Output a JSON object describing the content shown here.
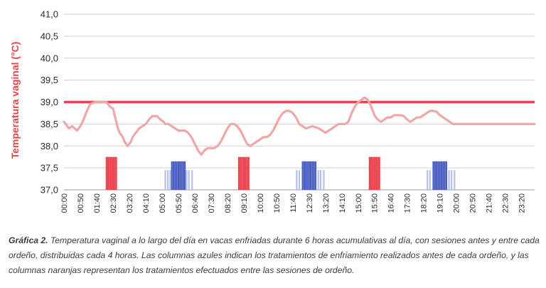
{
  "chart_data": {
    "type": "line",
    "ylabel": "Temperatura vaginal (°C)",
    "ylim": [
      37.0,
      41.0
    ],
    "yticks": [
      "37,0",
      "37,5",
      "38,0",
      "38,5",
      "39,0",
      "39,5",
      "40,0",
      "40,5",
      "41,0"
    ],
    "xticks": [
      "00:00",
      "00:50",
      "01:40",
      "02:30",
      "03:20",
      "04:10",
      "05:00",
      "05:50",
      "06:40",
      "07:30",
      "08:20",
      "09:10",
      "10:00",
      "10:50",
      "11:40",
      "12:30",
      "13:20",
      "14:10",
      "15:00",
      "15:50",
      "16:40",
      "17:30",
      "18:20",
      "19:10",
      "20:00",
      "20:50",
      "21:40",
      "22:30",
      "23:20"
    ],
    "xlim": [
      0,
      1440
    ],
    "threshold": 39.0,
    "series": [
      {
        "color": "#f0a7a9",
        "x": [
          0,
          15,
          25,
          40,
          50,
          60,
          70,
          80,
          95,
          100,
          110,
          120,
          130,
          140,
          150,
          160,
          165,
          170,
          180,
          185,
          195,
          205,
          210,
          220,
          230,
          240,
          250,
          260,
          270,
          285,
          295,
          305,
          310,
          320,
          330,
          340,
          350,
          360,
          370,
          380,
          390,
          400,
          410,
          420,
          430,
          440,
          450,
          460,
          470,
          480,
          490,
          500,
          510,
          520,
          530,
          540,
          550,
          560,
          570,
          580,
          590,
          600,
          610,
          620,
          630,
          640,
          650,
          660,
          670,
          680,
          690,
          700,
          710,
          720,
          730,
          740,
          760,
          780,
          800,
          810,
          820,
          830,
          840,
          850,
          860,
          870,
          880,
          890,
          900,
          910,
          920,
          930,
          940,
          950,
          960,
          970,
          980,
          990,
          1000,
          1010,
          1020,
          1030,
          1040,
          1050,
          1060,
          1070,
          1080,
          1090,
          1100,
          1110,
          1120,
          1130,
          1140,
          1150,
          1160,
          1170,
          1180,
          1190,
          1200,
          1210,
          1220,
          1230,
          1240,
          1250,
          1260,
          1270,
          1280,
          1290,
          1300,
          1310,
          1320,
          1330,
          1340,
          1350,
          1360,
          1370,
          1380,
          1390,
          1400,
          1410,
          1420,
          1440
        ],
        "y": [
          38.55,
          38.4,
          38.45,
          38.35,
          38.45,
          38.6,
          38.8,
          38.95,
          39.0,
          39.0,
          39.0,
          39.0,
          39.0,
          38.9,
          38.85,
          38.55,
          38.4,
          38.3,
          38.2,
          38.1,
          38.0,
          38.1,
          38.2,
          38.3,
          38.4,
          38.45,
          38.5,
          38.6,
          38.68,
          38.68,
          38.6,
          38.55,
          38.5,
          38.5,
          38.45,
          38.4,
          38.35,
          38.35,
          38.35,
          38.3,
          38.2,
          38.05,
          37.9,
          37.8,
          37.9,
          37.95,
          37.95,
          37.95,
          38.0,
          38.1,
          38.25,
          38.4,
          38.5,
          38.5,
          38.45,
          38.35,
          38.2,
          38.05,
          38.0,
          38.05,
          38.1,
          38.15,
          38.2,
          38.2,
          38.25,
          38.35,
          38.5,
          38.65,
          38.75,
          38.8,
          38.8,
          38.75,
          38.65,
          38.5,
          38.45,
          38.4,
          38.45,
          38.4,
          38.3,
          38.35,
          38.4,
          38.45,
          38.5,
          38.5,
          38.5,
          38.55,
          38.75,
          38.9,
          39.0,
          39.05,
          39.1,
          39.05,
          38.9,
          38.7,
          38.6,
          38.55,
          38.6,
          38.65,
          38.65,
          38.7,
          38.7,
          38.7,
          38.68,
          38.6,
          38.55,
          38.6,
          38.65,
          38.65,
          38.7,
          38.75,
          38.8,
          38.8,
          38.78,
          38.7,
          38.65,
          38.6,
          38.55,
          38.5,
          38.5,
          38.5,
          38.5,
          38.5,
          38.5,
          38.5,
          38.5,
          38.5,
          38.5,
          38.5,
          38.5,
          38.5,
          38.5,
          38.5,
          38.5,
          38.5,
          38.5,
          38.5,
          38.5,
          38.5,
          38.5,
          38.5,
          38.5,
          38.5
        ]
      }
    ],
    "bars": {
      "ybase": 37.0,
      "groups": [
        {
          "color": "#e8434c",
          "height": 37.75,
          "x": [
            130,
            135,
            140,
            145,
            150,
            155,
            160
          ]
        },
        {
          "color": "#4a5fc1",
          "height": 37.65,
          "x": [
            330,
            335,
            340,
            345,
            350,
            355,
            360,
            365,
            370
          ]
        },
        {
          "color": "#b7c0e8",
          "height": 37.45,
          "x": [
            310,
            318,
            325,
            375,
            382,
            392
          ]
        },
        {
          "color": "#e8434c",
          "height": 37.75,
          "x": [
            535,
            540,
            545,
            550,
            555,
            560,
            565
          ]
        },
        {
          "color": "#4a5fc1",
          "height": 37.65,
          "x": [
            730,
            735,
            740,
            745,
            750,
            755,
            760,
            765,
            770
          ]
        },
        {
          "color": "#b7c0e8",
          "height": 37.45,
          "x": [
            712,
            720,
            778,
            785,
            795
          ]
        },
        {
          "color": "#e8434c",
          "height": 37.75,
          "x": [
            935,
            940,
            945,
            950,
            955,
            960,
            965
          ]
        },
        {
          "color": "#4a5fc1",
          "height": 37.65,
          "x": [
            1130,
            1135,
            1140,
            1145,
            1150,
            1155,
            1160,
            1165,
            1170
          ]
        },
        {
          "color": "#b7c0e8",
          "height": 37.45,
          "x": [
            1112,
            1120,
            1178,
            1186,
            1195
          ]
        }
      ]
    }
  },
  "caption": {
    "lead": "Gráfica 2.",
    "text": " Temperatura vaginal a lo largo del día en vacas enfriadas durante 6 horas acumulativas al día, con sesiones antes y entre cada ordeño, distribuidas cada 4 horas. Las columnas azules indican los tratamientos de enfriamiento realizados antes de cada ordeño, y las columnas naranjas representan los tratamientos efectuados entre las sesiones de ordeño."
  }
}
